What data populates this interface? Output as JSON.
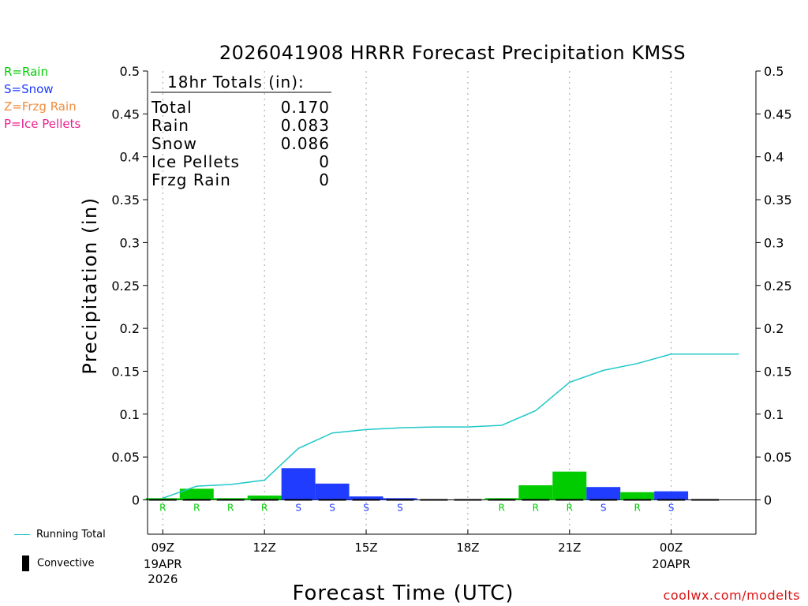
{
  "chart_data": {
    "type": "bar",
    "title": "2026041908 HRRR Forecast Precipitation KMSS",
    "xlabel": "Forecast Time (UTC)",
    "ylabel": "Precipitation (in)",
    "ylim": [
      -0.04,
      0.5
    ],
    "yticks": [
      "0",
      "0.05",
      "0.1",
      "0.15",
      "0.2",
      "0.25",
      "0.3",
      "0.35",
      "0.4",
      "0.45",
      "0.5"
    ],
    "ytick_values": [
      0,
      0.05,
      0.1,
      0.15,
      0.2,
      0.25,
      0.3,
      0.35,
      0.4,
      0.45,
      0.5
    ],
    "xlim": [
      8.55,
      26.5
    ],
    "xticks": [
      {
        "hour": 9,
        "label": "09Z",
        "date": "19APR",
        "year": "2026"
      },
      {
        "hour": 12,
        "label": "12Z",
        "date": "",
        "year": ""
      },
      {
        "hour": 15,
        "label": "15Z",
        "date": "",
        "year": ""
      },
      {
        "hour": 18,
        "label": "18Z",
        "date": "",
        "year": ""
      },
      {
        "hour": 21,
        "label": "21Z",
        "date": "",
        "year": ""
      },
      {
        "hour": 24,
        "label": "00Z",
        "date": "20APR",
        "year": ""
      }
    ],
    "bars": [
      {
        "hour": 9,
        "type": "R",
        "value": 0.002
      },
      {
        "hour": 10,
        "type": "R",
        "value": 0.013
      },
      {
        "hour": 11,
        "type": "R",
        "value": 0.002
      },
      {
        "hour": 12,
        "type": "R",
        "value": 0.005
      },
      {
        "hour": 13,
        "type": "S",
        "value": 0.037
      },
      {
        "hour": 14,
        "type": "S",
        "value": 0.019
      },
      {
        "hour": 15,
        "type": "S",
        "value": 0.004
      },
      {
        "hour": 16,
        "type": "S",
        "value": 0.002
      },
      {
        "hour": 17,
        "type": "",
        "value": 0
      },
      {
        "hour": 18,
        "type": "",
        "value": 0
      },
      {
        "hour": 19,
        "type": "R",
        "value": 0.002
      },
      {
        "hour": 20,
        "type": "R",
        "value": 0.017
      },
      {
        "hour": 21,
        "type": "R",
        "value": 0.033
      },
      {
        "hour": 22,
        "type": "S",
        "value": 0.015
      },
      {
        "hour": 23,
        "type": "R",
        "value": 0.009
      },
      {
        "hour": 24,
        "type": "S",
        "value": 0.01
      },
      {
        "hour": 25,
        "type": "",
        "value": 0
      }
    ],
    "running_total": {
      "hours": [
        9,
        10,
        11,
        12,
        13,
        14,
        15,
        16,
        17,
        18,
        19,
        20,
        21,
        22,
        23,
        24,
        25,
        26
      ],
      "values": [
        0.002,
        0.016,
        0.018,
        0.023,
        0.06,
        0.078,
        0.082,
        0.084,
        0.085,
        0.085,
        0.087,
        0.104,
        0.137,
        0.151,
        0.159,
        0.17,
        0.17,
        0.17
      ]
    },
    "totals": {
      "header": "18hr Totals (in):",
      "rows": [
        {
          "label": "Total",
          "value": "0.170"
        },
        {
          "label": "Rain",
          "value": "0.083"
        },
        {
          "label": "Snow",
          "value": "0.086"
        },
        {
          "label": "Ice Pellets",
          "value": "0"
        },
        {
          "label": "Frzg Rain",
          "value": "0"
        }
      ]
    },
    "colors": {
      "R": "#00cc00",
      "S": "#1f3cff",
      "Z": "#f08c3c",
      "P": "#e8208c",
      "running_total": "#20c8c8",
      "grid": "#a0a0a0"
    }
  },
  "legend": {
    "rain": "R=Rain",
    "snow": "S=Snow",
    "frzg_rain": "Z=Frzg Rain",
    "ice_pellets": "P=Ice Pellets",
    "running_total": "Running Total",
    "convective": "Convective"
  },
  "credit": "coolwx.com/modelts"
}
